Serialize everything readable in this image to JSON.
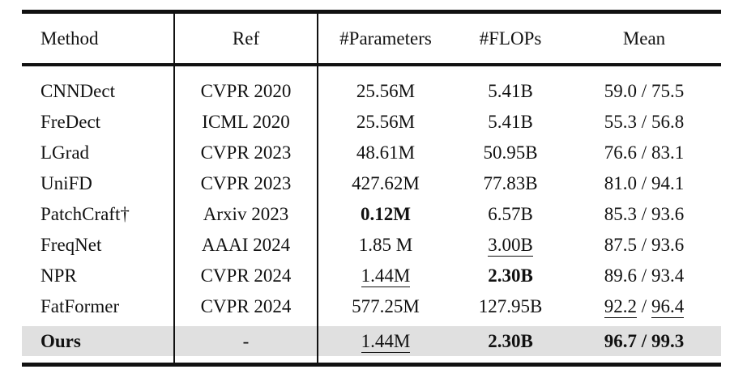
{
  "colors": {
    "text": "#111111",
    "rule": "#111111",
    "highlight_row": "#e0e0e0"
  },
  "table": {
    "header": {
      "method": "Method",
      "ref": "Ref",
      "params": "#Parameters",
      "flops": "#FLOPs",
      "mean": "Mean"
    },
    "mean_separator": " / ",
    "rows": [
      {
        "method": {
          "text": "CNNDect",
          "style": "normal"
        },
        "ref": "CVPR 2020",
        "params": {
          "text": "25.56M",
          "style": "normal"
        },
        "flops": {
          "text": "5.41B",
          "style": "normal"
        },
        "mean": {
          "a": "59.0",
          "b": "75.5",
          "style": "normal"
        },
        "highlight": false
      },
      {
        "method": {
          "text": "FreDect",
          "style": "normal"
        },
        "ref": "ICML 2020",
        "params": {
          "text": "25.56M",
          "style": "normal"
        },
        "flops": {
          "text": "5.41B",
          "style": "normal"
        },
        "mean": {
          "a": "55.3",
          "b": "56.8",
          "style": "normal"
        },
        "highlight": false
      },
      {
        "method": {
          "text": "LGrad",
          "style": "normal"
        },
        "ref": "CVPR 2023",
        "params": {
          "text": "48.61M",
          "style": "normal"
        },
        "flops": {
          "text": "50.95B",
          "style": "normal"
        },
        "mean": {
          "a": "76.6",
          "b": "83.1",
          "style": "normal"
        },
        "highlight": false
      },
      {
        "method": {
          "text": "UniFD",
          "style": "normal"
        },
        "ref": "CVPR 2023",
        "params": {
          "text": "427.62M",
          "style": "normal"
        },
        "flops": {
          "text": "77.83B",
          "style": "normal"
        },
        "mean": {
          "a": "81.0",
          "b": "94.1",
          "style": "normal"
        },
        "highlight": false
      },
      {
        "method": {
          "text": "PatchCraft†",
          "style": "normal"
        },
        "ref": "Arxiv 2023",
        "params": {
          "text": "0.12M",
          "style": "bold"
        },
        "flops": {
          "text": "6.57B",
          "style": "normal"
        },
        "mean": {
          "a": "85.3",
          "b": "93.6",
          "style": "normal"
        },
        "highlight": false
      },
      {
        "method": {
          "text": "FreqNet",
          "style": "normal"
        },
        "ref": "AAAI 2024",
        "params": {
          "text": "1.85 M",
          "style": "normal"
        },
        "flops": {
          "text": "3.00B",
          "style": "underline"
        },
        "mean": {
          "a": "87.5",
          "b": "93.6",
          "style": "normal"
        },
        "highlight": false
      },
      {
        "method": {
          "text": "NPR",
          "style": "normal"
        },
        "ref": "CVPR 2024",
        "params": {
          "text": "1.44M",
          "style": "underline"
        },
        "flops": {
          "text": "2.30B",
          "style": "bold"
        },
        "mean": {
          "a": "89.6",
          "b": "93.4",
          "style": "normal"
        },
        "highlight": false
      },
      {
        "method": {
          "text": "FatFormer",
          "style": "normal"
        },
        "ref": "CVPR 2024",
        "params": {
          "text": "577.25M",
          "style": "normal"
        },
        "flops": {
          "text": "127.95B",
          "style": "normal"
        },
        "mean": {
          "a": "92.2",
          "b": "96.4",
          "style": "underline"
        },
        "highlight": false
      },
      {
        "method": {
          "text": "Ours",
          "style": "bold"
        },
        "ref": "-",
        "params": {
          "text": "1.44M",
          "style": "underline"
        },
        "flops": {
          "text": "2.30B",
          "style": "bold"
        },
        "mean": {
          "a": "96.7",
          "b": "99.3",
          "style": "bold"
        },
        "highlight": true
      }
    ]
  }
}
